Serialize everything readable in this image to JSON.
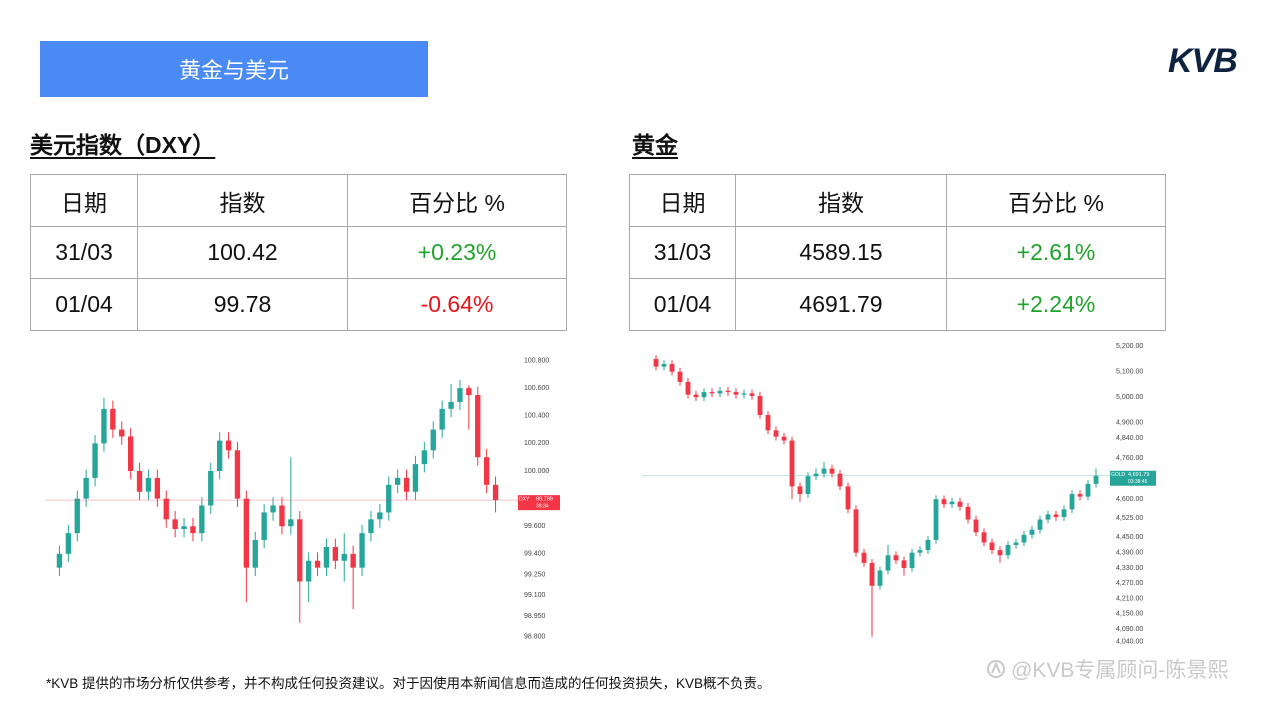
{
  "header": {
    "title": "黄金与美元",
    "logo": "KVB"
  },
  "dxy": {
    "title": "美元指数（DXY）",
    "table": {
      "header": [
        "日期",
        "指数",
        "百分比 %"
      ],
      "rows": [
        [
          "31/03",
          "100.42",
          "+0.23%"
        ],
        [
          "01/04",
          "99.78",
          "-0.64%"
        ]
      ]
    }
  },
  "gold": {
    "title": "黄金",
    "table": {
      "header": [
        "日期",
        "指数",
        "百分比 %"
      ],
      "rows": [
        [
          "31/03",
          "4589.15",
          "+2.61%"
        ],
        [
          "01/04",
          "4691.79",
          "+2.24%"
        ]
      ]
    }
  },
  "chart_data": [
    {
      "type": "candlestick",
      "symbol": "DXY",
      "countdown": "39:34",
      "last": 99.789,
      "up_color": "#26a69a",
      "down_color": "#f23645",
      "ylim": [
        98.74,
        100.84
      ],
      "yticks": [
        {
          "value": 100.8,
          "label": "100.800"
        },
        {
          "value": 100.6,
          "label": "100.600"
        },
        {
          "value": 100.4,
          "label": "100.400"
        },
        {
          "value": 100.2,
          "label": "100.200"
        },
        {
          "value": 100,
          "label": "100.000"
        },
        {
          "value": 99.6,
          "label": "99.600"
        },
        {
          "value": 99.4,
          "label": "99.400"
        },
        {
          "value": 99.25,
          "label": "99.250"
        },
        {
          "value": 99.1,
          "label": "99.100"
        },
        {
          "value": 98.95,
          "label": "98.950"
        },
        {
          "value": 98.8,
          "label": "98.800"
        }
      ],
      "open": [
        99.3,
        99.4,
        99.55,
        99.8,
        99.95,
        100.2,
        100.45,
        100.3,
        100.25,
        100.0,
        99.85,
        99.95,
        99.8,
        99.65,
        99.58,
        99.6,
        99.55,
        99.75,
        100.0,
        100.22,
        100.15,
        99.8,
        99.3,
        99.5,
        99.7,
        99.75,
        99.6,
        99.65,
        99.2,
        99.35,
        99.3,
        99.45,
        99.35,
        99.4,
        99.3,
        99.55,
        99.65,
        99.7,
        99.9,
        99.95,
        99.85,
        100.05,
        100.15,
        100.3,
        100.45,
        100.5,
        100.6,
        100.55,
        100.1,
        99.9
      ],
      "high": [
        99.46,
        99.61,
        99.86,
        100.01,
        100.26,
        100.53,
        100.51,
        100.36,
        100.31,
        100.06,
        100.01,
        100.01,
        99.86,
        99.71,
        99.66,
        99.66,
        99.81,
        100.06,
        100.28,
        100.28,
        100.21,
        99.86,
        99.56,
        99.76,
        99.81,
        99.81,
        100.1,
        99.71,
        99.41,
        99.41,
        99.51,
        99.51,
        99.55,
        99.46,
        99.61,
        99.71,
        99.76,
        99.96,
        100.01,
        100.01,
        100.11,
        100.21,
        100.36,
        100.51,
        100.63,
        100.66,
        100.62,
        100.61,
        100.16,
        99.96
      ],
      "low": [
        99.24,
        99.34,
        99.49,
        99.74,
        99.89,
        100.14,
        100.24,
        100.19,
        99.94,
        99.79,
        99.79,
        99.74,
        99.59,
        99.52,
        99.52,
        99.49,
        99.49,
        99.69,
        99.94,
        100.09,
        99.74,
        99.05,
        99.24,
        99.44,
        99.64,
        99.54,
        99.54,
        98.9,
        99.05,
        99.24,
        99.24,
        99.29,
        99.2,
        99.0,
        99.24,
        99.49,
        99.59,
        99.64,
        99.84,
        99.79,
        99.79,
        99.99,
        100.09,
        100.24,
        100.39,
        100.44,
        100.3,
        100.04,
        99.84,
        99.7
      ],
      "close": [
        99.4,
        99.55,
        99.8,
        99.95,
        100.2,
        100.45,
        100.3,
        100.25,
        100.0,
        99.85,
        99.95,
        99.8,
        99.65,
        99.58,
        99.6,
        99.55,
        99.75,
        100.0,
        100.22,
        100.15,
        99.8,
        99.3,
        99.5,
        99.7,
        99.75,
        99.6,
        99.65,
        99.2,
        99.35,
        99.3,
        99.45,
        99.35,
        99.4,
        99.3,
        99.55,
        99.65,
        99.7,
        99.9,
        99.95,
        99.85,
        100.05,
        100.15,
        100.3,
        100.45,
        100.5,
        100.6,
        100.55,
        100.1,
        99.9,
        99.79
      ]
    },
    {
      "type": "candlestick",
      "symbol": "GOLD",
      "countdown": "03:38:45",
      "last": {
        "value": 4691.79,
        "label": "4,691.79"
      },
      "up_color": "#26a69a",
      "down_color": "#f23645",
      "ylim": [
        4020,
        5240
      ],
      "yticks": [
        {
          "value": 5200,
          "label": "5,200.00"
        },
        {
          "value": 5100,
          "label": "5,100.00"
        },
        {
          "value": 5000,
          "label": "5,000.00"
        },
        {
          "value": 4900,
          "label": "4,900.00"
        },
        {
          "value": 4840,
          "label": "4,840.00"
        },
        {
          "value": 4760,
          "label": "4,760.00"
        },
        {
          "value": 4600,
          "label": "4,600.00"
        },
        {
          "value": 4525,
          "label": "4,525.00"
        },
        {
          "value": 4450,
          "label": "4,450.00"
        },
        {
          "value": 4390,
          "label": "4,390.00"
        },
        {
          "value": 4330,
          "label": "4,330.00"
        },
        {
          "value": 4270,
          "label": "4,270.00"
        },
        {
          "value": 4210,
          "label": "4,210.00"
        },
        {
          "value": 4150,
          "label": "4,150.00"
        },
        {
          "value": 4090,
          "label": "4,090.00"
        },
        {
          "value": 4040,
          "label": "4,040.00"
        }
      ],
      "open": [
        5150,
        5120,
        5130,
        5100,
        5060,
        5010,
        5000,
        5020,
        5015,
        5025,
        5020,
        5010,
        5015,
        5005,
        4930,
        4870,
        4845,
        4830,
        4650,
        4620,
        4690,
        4700,
        4720,
        4700,
        4650,
        4560,
        4390,
        4350,
        4260,
        4320,
        4380,
        4360,
        4330,
        4390,
        4400,
        4440,
        4600,
        4580,
        4590,
        4570,
        4520,
        4470,
        4430,
        4400,
        4380,
        4420,
        4430,
        4460,
        4480,
        4520,
        4540,
        4530,
        4560,
        4620,
        4610,
        4660
      ],
      "high": [
        5165,
        5145,
        5145,
        5115,
        5075,
        5025,
        5035,
        5035,
        5040,
        5040,
        5035,
        5030,
        5030,
        5020,
        4945,
        4885,
        4860,
        4845,
        4665,
        4705,
        4720,
        4745,
        4735,
        4715,
        4665,
        4575,
        4405,
        4365,
        4335,
        4420,
        4395,
        4375,
        4405,
        4415,
        4455,
        4615,
        4615,
        4605,
        4605,
        4585,
        4535,
        4485,
        4445,
        4415,
        4435,
        4445,
        4475,
        4495,
        4535,
        4555,
        4555,
        4575,
        4635,
        4635,
        4675,
        4720
      ],
      "low": [
        5105,
        5105,
        5085,
        5045,
        4995,
        4985,
        4985,
        5000,
        5000,
        5005,
        4995,
        4995,
        4990,
        4915,
        4855,
        4830,
        4815,
        4600,
        4590,
        4605,
        4675,
        4685,
        4685,
        4635,
        4545,
        4375,
        4335,
        4060,
        4245,
        4305,
        4345,
        4300,
        4315,
        4375,
        4385,
        4425,
        4565,
        4565,
        4555,
        4505,
        4455,
        4415,
        4385,
        4350,
        4365,
        4405,
        4415,
        4445,
        4465,
        4505,
        4515,
        4515,
        4545,
        4595,
        4595,
        4645
      ],
      "close": [
        5120,
        5130,
        5100,
        5060,
        5010,
        5000,
        5020,
        5015,
        5025,
        5020,
        5010,
        5015,
        5005,
        4930,
        4870,
        4845,
        4830,
        4650,
        4620,
        4690,
        4700,
        4720,
        4700,
        4650,
        4560,
        4390,
        4350,
        4260,
        4320,
        4380,
        4360,
        4330,
        4390,
        4400,
        4440,
        4600,
        4580,
        4590,
        4570,
        4520,
        4470,
        4430,
        4400,
        4380,
        4420,
        4430,
        4460,
        4480,
        4520,
        4540,
        4530,
        4560,
        4620,
        4610,
        4660,
        4691.79
      ]
    }
  ],
  "disclaimer": "*KVB 提供的市场分析仅供参考，并不构成任何投资建议。对于因使用本新闻信息而造成的任何投资损失，KVB概不负责。",
  "watermark": "@KVB专属顾问-陈景熙"
}
